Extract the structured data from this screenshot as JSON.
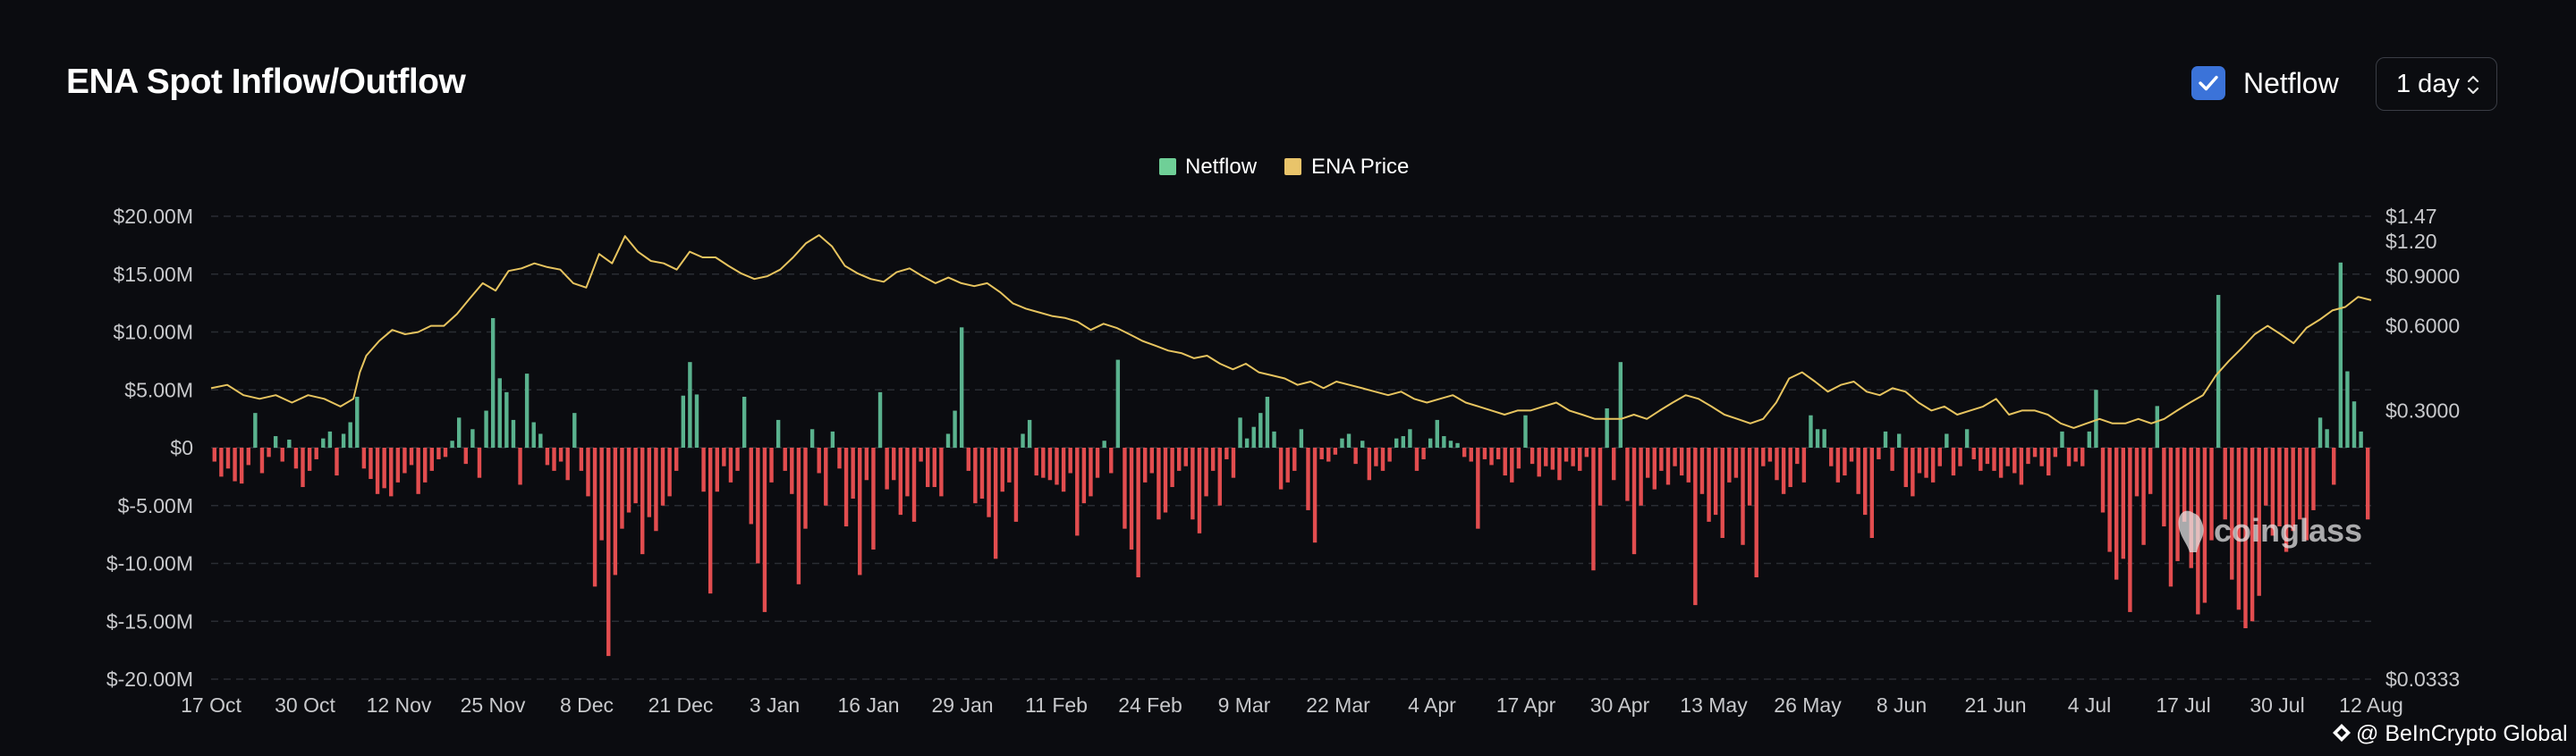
{
  "header": {
    "title": "ENA Spot Inflow/Outflow",
    "toggle_label": "Netflow",
    "toggle_checked": true,
    "interval": "1 day"
  },
  "legend": [
    {
      "name": "Netflow",
      "color": "#6fcf97"
    },
    {
      "name": "ENA Price",
      "color": "#e9c46a"
    }
  ],
  "watermark": "coinglass",
  "credit": "@ BeInCrypto Global",
  "colors": {
    "inflow": "#5ab28e",
    "outflow": "#e24d4f",
    "price": "#e7c45f",
    "grid": "#2a2d33",
    "axis_text": "#c8c9cc"
  },
  "chart_data": {
    "type": "bar",
    "title": "ENA Spot Inflow/Outflow",
    "x_tick_labels": [
      "17 Oct",
      "30 Oct",
      "12 Nov",
      "25 Nov",
      "8 Dec",
      "21 Dec",
      "3 Jan",
      "16 Jan",
      "29 Jan",
      "11 Feb",
      "24 Feb",
      "9 Mar",
      "22 Mar",
      "4 Apr",
      "17 Apr",
      "30 Apr",
      "13 May",
      "26 May",
      "8 Jun",
      "21 Jun",
      "4 Jul",
      "17 Jul",
      "30 Jul",
      "12 Aug"
    ],
    "y_left": {
      "ticks": [
        "$20.00M",
        "$15.00M",
        "$10.00M",
        "$5.00M",
        "$0",
        "$-5.00M",
        "$-10.00M",
        "$-15.00M",
        "$-20.00M"
      ],
      "ylim": [
        -20,
        20
      ],
      "unit": "USD millions"
    },
    "y_right": {
      "ticks": [
        "$1.47",
        "$1.20",
        "$0.9000",
        "$0.6000",
        "$0.3000",
        "$0.0333"
      ],
      "scale": "log"
    },
    "series": [
      {
        "name": "Netflow",
        "axis": "left",
        "values": [
          -1.2,
          -2.5,
          -1.8,
          -2.9,
          -3.1,
          -1.5,
          3.0,
          -2.2,
          -0.8,
          1.0,
          -1.2,
          0.7,
          -1.8,
          -3.4,
          -2.0,
          -1.0,
          0.8,
          1.4,
          -2.4,
          1.2,
          2.2,
          4.4,
          -1.8,
          -2.7,
          -4.0,
          -3.5,
          -4.2,
          -3.0,
          -2.2,
          -1.5,
          -4.0,
          -3.0,
          -2.0,
          -1.0,
          -0.8,
          0.6,
          2.6,
          -1.4,
          1.6,
          -2.6,
          3.2,
          11.2,
          6.0,
          4.8,
          2.4,
          -3.2,
          6.4,
          2.2,
          1.2,
          -1.5,
          -2.0,
          -1.2,
          -2.8,
          3.0,
          -2.0,
          -4.2,
          -12.0,
          -8.0,
          -18.0,
          -11.0,
          -7.0,
          -5.6,
          -4.8,
          -9.2,
          -6.0,
          -7.2,
          -5.0,
          -4.2,
          -2.0,
          4.5,
          7.4,
          4.6,
          -3.8,
          -12.6,
          -3.8,
          -1.6,
          -3.0,
          -2.0,
          4.4,
          -6.6,
          -10.0,
          -14.2,
          -3.0,
          2.4,
          -2.0,
          -4.0,
          -11.8,
          -7.0,
          1.6,
          -2.2,
          -5.0,
          1.4,
          -1.8,
          -6.8,
          -4.4,
          -11.0,
          -2.8,
          -8.8,
          4.8,
          -3.6,
          -2.8,
          -5.8,
          -4.2,
          -6.4,
          -1.2,
          -3.4,
          -3.4,
          -4.2,
          1.2,
          3.2,
          10.4,
          -2.0,
          -4.8,
          -4.4,
          -6.0,
          -9.6,
          -3.8,
          -3.0,
          -6.4,
          1.2,
          2.4,
          -2.4,
          -2.6,
          -2.8,
          -3.2,
          -3.8,
          -2.2,
          -7.6,
          -4.8,
          -4.2,
          -2.6,
          0.6,
          -2.2,
          7.6,
          -7.0,
          -8.8,
          -11.2,
          -3.0,
          -2.2,
          -6.2,
          -5.6,
          -3.4,
          -2.0,
          -1.6,
          -6.2,
          -7.4,
          -4.2,
          -2.0,
          -5.0,
          -1.0,
          -2.6,
          2.6,
          0.8,
          1.8,
          3.0,
          4.4,
          1.4,
          -3.6,
          -3.0,
          -2.0,
          1.6,
          -5.4,
          -8.2,
          -1.0,
          -1.2,
          -0.6,
          0.8,
          1.2,
          -1.4,
          0.6,
          -2.8,
          -1.6,
          -2.0,
          -1.2,
          0.8,
          1.0,
          1.6,
          -2.0,
          -1.0,
          0.8,
          2.4,
          1.0,
          0.6,
          0.4,
          -0.8,
          -1.2,
          -7.0,
          -1.0,
          -1.5,
          -1.0,
          -2.4,
          -3.0,
          -1.8,
          2.8,
          -1.4,
          -2.5,
          -1.6,
          -1.9,
          -2.8,
          -1.2,
          -1.6,
          -2.0,
          -0.8,
          -10.6,
          -5.0,
          3.4,
          -2.8,
          7.4,
          -4.6,
          -9.2,
          -5.0,
          -2.6,
          -3.6,
          -2.0,
          -3.2,
          -1.6,
          -2.4,
          -3.0,
          -13.6,
          -4.0,
          -6.4,
          -5.8,
          -7.8,
          -3.0,
          -2.6,
          -8.4,
          -5.0,
          -11.2,
          -1.6,
          -1.2,
          -2.8,
          -4.0,
          -3.4,
          -1.4,
          -3.0,
          2.8,
          1.6,
          1.6,
          -1.6,
          -3.0,
          -2.4,
          -1.2,
          -4.0,
          -5.8,
          -7.8,
          -1.0,
          1.4,
          -2.0,
          1.2,
          -3.4,
          -4.2,
          -2.2,
          -2.6,
          -3.0,
          -1.6,
          1.2,
          -2.4,
          -1.6,
          1.6,
          -1.0,
          -2.0,
          -1.4,
          -2.0,
          -2.6,
          -1.6,
          -2.2,
          -3.2,
          -1.4,
          -0.8,
          -1.6,
          -2.4,
          -0.8,
          1.4,
          -1.6,
          -1.2,
          -1.6,
          1.4,
          5.0,
          -5.6,
          -9.0,
          -11.4,
          -9.6,
          -14.2,
          -4.2,
          -8.4,
          -4.0,
          3.6,
          -6.8,
          -12.0,
          -9.8,
          -6.4,
          -10.4,
          -14.4,
          -13.4,
          -8.0,
          13.2,
          -6.2,
          -11.4,
          -14.0,
          -15.6,
          -15.0,
          -12.8,
          -5.0,
          -7.6,
          -6.8,
          -9.0,
          -7.2,
          -6.2,
          -8.0,
          -5.4,
          2.6,
          1.6,
          -3.2,
          16.0,
          6.6,
          4.0,
          1.4,
          -6.2
        ],
        "colors": {
          "positive": "#5ab28e",
          "negative": "#e24d4f"
        }
      },
      {
        "name": "ENA Price",
        "axis": "right",
        "points": [
          [
            0,
            0.36
          ],
          [
            5,
            0.37
          ],
          [
            10,
            0.34
          ],
          [
            15,
            0.33
          ],
          [
            20,
            0.34
          ],
          [
            25,
            0.32
          ],
          [
            30,
            0.34
          ],
          [
            35,
            0.33
          ],
          [
            40,
            0.31
          ],
          [
            44,
            0.33
          ],
          [
            46,
            0.41
          ],
          [
            48,
            0.47
          ],
          [
            52,
            0.53
          ],
          [
            56,
            0.58
          ],
          [
            60,
            0.56
          ],
          [
            64,
            0.57
          ],
          [
            68,
            0.6
          ],
          [
            72,
            0.6
          ],
          [
            76,
            0.66
          ],
          [
            80,
            0.75
          ],
          [
            84,
            0.85
          ],
          [
            88,
            0.8
          ],
          [
            92,
            0.94
          ],
          [
            96,
            0.96
          ],
          [
            100,
            1.0
          ],
          [
            104,
            0.97
          ],
          [
            108,
            0.95
          ],
          [
            112,
            0.85
          ],
          [
            116,
            0.82
          ],
          [
            120,
            1.08
          ],
          [
            124,
            1.0
          ],
          [
            128,
            1.25
          ],
          [
            132,
            1.1
          ],
          [
            136,
            1.02
          ],
          [
            140,
            1.0
          ],
          [
            144,
            0.95
          ],
          [
            148,
            1.1
          ],
          [
            152,
            1.05
          ],
          [
            156,
            1.05
          ],
          [
            160,
            0.98
          ],
          [
            164,
            0.92
          ],
          [
            168,
            0.88
          ],
          [
            172,
            0.9
          ],
          [
            176,
            0.95
          ],
          [
            180,
            1.05
          ],
          [
            184,
            1.18
          ],
          [
            188,
            1.26
          ],
          [
            192,
            1.15
          ],
          [
            196,
            0.98
          ],
          [
            200,
            0.92
          ],
          [
            204,
            0.88
          ],
          [
            208,
            0.86
          ],
          [
            212,
            0.93
          ],
          [
            216,
            0.96
          ],
          [
            220,
            0.9
          ],
          [
            224,
            0.85
          ],
          [
            228,
            0.89
          ],
          [
            232,
            0.85
          ],
          [
            236,
            0.83
          ],
          [
            240,
            0.85
          ],
          [
            244,
            0.79
          ],
          [
            248,
            0.72
          ],
          [
            252,
            0.69
          ],
          [
            256,
            0.67
          ],
          [
            260,
            0.65
          ],
          [
            264,
            0.64
          ],
          [
            268,
            0.62
          ],
          [
            272,
            0.58
          ],
          [
            276,
            0.61
          ],
          [
            280,
            0.59
          ],
          [
            284,
            0.56
          ],
          [
            288,
            0.53
          ],
          [
            292,
            0.51
          ],
          [
            296,
            0.49
          ],
          [
            300,
            0.48
          ],
          [
            304,
            0.46
          ],
          [
            308,
            0.47
          ],
          [
            312,
            0.44
          ],
          [
            316,
            0.42
          ],
          [
            320,
            0.44
          ],
          [
            324,
            0.41
          ],
          [
            328,
            0.4
          ],
          [
            332,
            0.39
          ],
          [
            336,
            0.37
          ],
          [
            340,
            0.38
          ],
          [
            344,
            0.36
          ],
          [
            348,
            0.38
          ],
          [
            352,
            0.37
          ],
          [
            356,
            0.36
          ],
          [
            360,
            0.35
          ],
          [
            364,
            0.34
          ],
          [
            368,
            0.35
          ],
          [
            372,
            0.33
          ],
          [
            376,
            0.32
          ],
          [
            380,
            0.33
          ],
          [
            384,
            0.34
          ],
          [
            388,
            0.32
          ],
          [
            392,
            0.31
          ],
          [
            396,
            0.3
          ],
          [
            400,
            0.29
          ],
          [
            404,
            0.3
          ],
          [
            408,
            0.3
          ],
          [
            412,
            0.31
          ],
          [
            416,
            0.32
          ],
          [
            420,
            0.3
          ],
          [
            424,
            0.29
          ],
          [
            428,
            0.28
          ],
          [
            432,
            0.28
          ],
          [
            436,
            0.28
          ],
          [
            440,
            0.29
          ],
          [
            444,
            0.28
          ],
          [
            448,
            0.3
          ],
          [
            452,
            0.32
          ],
          [
            456,
            0.34
          ],
          [
            460,
            0.33
          ],
          [
            464,
            0.31
          ],
          [
            468,
            0.29
          ],
          [
            472,
            0.28
          ],
          [
            476,
            0.27
          ],
          [
            480,
            0.28
          ],
          [
            484,
            0.32
          ],
          [
            488,
            0.39
          ],
          [
            492,
            0.41
          ],
          [
            496,
            0.38
          ],
          [
            500,
            0.35
          ],
          [
            504,
            0.37
          ],
          [
            508,
            0.38
          ],
          [
            512,
            0.35
          ],
          [
            516,
            0.34
          ],
          [
            520,
            0.36
          ],
          [
            524,
            0.35
          ],
          [
            528,
            0.32
          ],
          [
            532,
            0.3
          ],
          [
            536,
            0.31
          ],
          [
            540,
            0.29
          ],
          [
            544,
            0.3
          ],
          [
            548,
            0.31
          ],
          [
            552,
            0.33
          ],
          [
            556,
            0.29
          ],
          [
            560,
            0.3
          ],
          [
            564,
            0.3
          ],
          [
            568,
            0.29
          ],
          [
            572,
            0.27
          ],
          [
            576,
            0.26
          ],
          [
            580,
            0.27
          ],
          [
            584,
            0.28
          ],
          [
            588,
            0.27
          ],
          [
            592,
            0.27
          ],
          [
            596,
            0.28
          ],
          [
            600,
            0.27
          ],
          [
            604,
            0.28
          ],
          [
            608,
            0.3
          ],
          [
            612,
            0.32
          ],
          [
            616,
            0.34
          ],
          [
            620,
            0.4
          ],
          [
            624,
            0.45
          ],
          [
            628,
            0.5
          ],
          [
            632,
            0.56
          ],
          [
            636,
            0.6
          ],
          [
            640,
            0.56
          ],
          [
            644,
            0.52
          ],
          [
            648,
            0.59
          ],
          [
            652,
            0.63
          ],
          [
            656,
            0.68
          ],
          [
            660,
            0.7
          ],
          [
            664,
            0.76
          ],
          [
            668,
            0.74
          ]
        ]
      }
    ],
    "x_domain": [
      0,
      668
    ],
    "y_right_domain": [
      0.0333,
      1.47
    ],
    "grid": "horizontal dashed",
    "legend_position": "top-center"
  }
}
